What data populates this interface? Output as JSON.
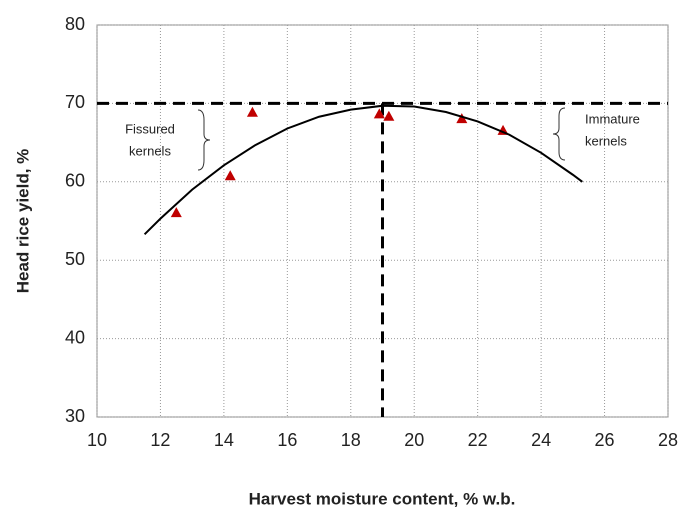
{
  "chart_data": {
    "type": "scatter",
    "x_label": "Harvest moisture content, % w.b.",
    "y_label": "Head  rice yield, %",
    "xlim": [
      10,
      28
    ],
    "xticks": [
      10,
      12,
      14,
      16,
      18,
      20,
      22,
      24,
      26,
      28
    ],
    "ylim": [
      30,
      80
    ],
    "yticks": [
      30,
      40,
      50,
      60,
      70,
      80
    ],
    "grid": true,
    "series": [
      {
        "type": "scatter",
        "color": "#c00000",
        "x": [
          12.5,
          14.2,
          14.9,
          18.9,
          19.2,
          21.5,
          22.8
        ],
        "values": [
          56,
          60.7,
          68.8,
          68.6,
          68.3,
          68,
          66.5
        ]
      },
      {
        "type": "line",
        "color": "#000000",
        "x": [
          11.5,
          12,
          13,
          14,
          15,
          16,
          17,
          18,
          19,
          20,
          21,
          22,
          23,
          24,
          25,
          25.3
        ],
        "values": [
          53.3,
          55.3,
          59.0,
          62.1,
          64.7,
          66.8,
          68.3,
          69.2,
          69.7,
          69.6,
          68.9,
          67.7,
          66.0,
          63.7,
          60.9,
          60.0
        ]
      }
    ],
    "hline": 70,
    "vline": 19,
    "annotations": [
      [
        "Fissured",
        "kernels"
      ],
      [
        "Immature",
        "kernels"
      ]
    ]
  }
}
